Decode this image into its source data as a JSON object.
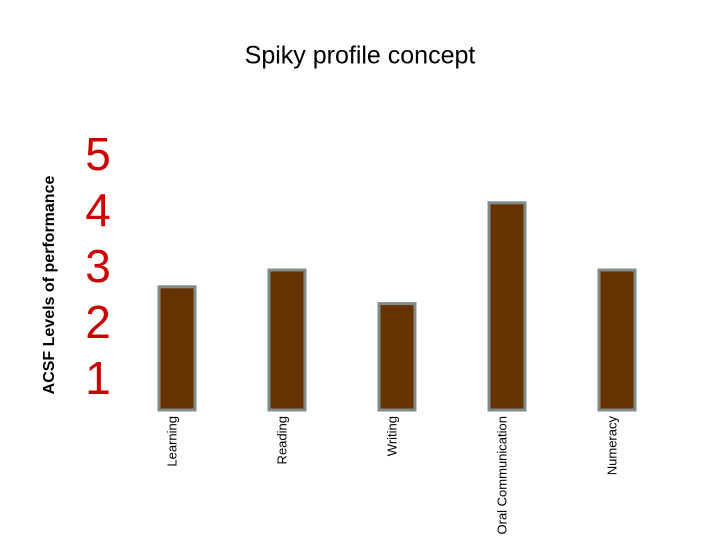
{
  "chart_data": {
    "type": "bar",
    "title": "Spiky profile concept",
    "y_label": "ACSF Levels of performance",
    "categories": [
      "Learning",
      "Reading",
      "Writing",
      "Oral Communication",
      "Numeracy"
    ],
    "values": [
      2.7,
      3.0,
      2.4,
      4.2,
      3.0
    ],
    "color": "#663300",
    "edge_color": "#7f8c8c",
    "tick_color": "#cc0000",
    "ylim": [
      0.5,
      5.5
    ],
    "yticks": [
      1,
      2,
      3,
      4,
      5
    ],
    "grid": false
  }
}
